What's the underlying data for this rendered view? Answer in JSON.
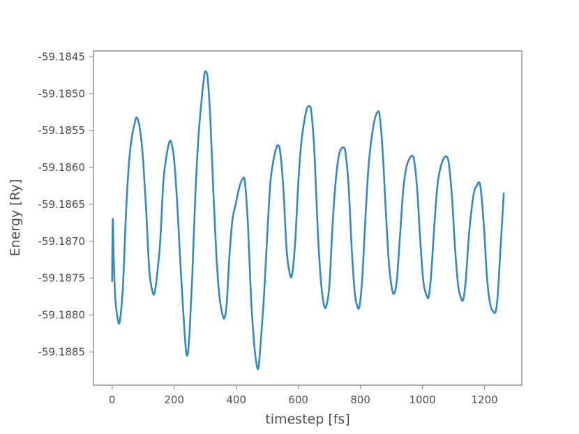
{
  "chart_data": {
    "type": "line",
    "title": "",
    "xlabel": "timestep [fs]",
    "ylabel": "Energy [Ry]",
    "xlim": [
      -60,
      1320
    ],
    "ylim": [
      -59.18895,
      -59.18442
    ],
    "grid": false,
    "colors": {
      "line": "#348abd",
      "frame": "#999999",
      "tick": "#4d4d4d"
    },
    "x_ticks": [
      0,
      200,
      400,
      600,
      800,
      1000,
      1200
    ],
    "x_tick_labels": [
      "0",
      "200",
      "400",
      "600",
      "800",
      "1000",
      "1200"
    ],
    "y_ticks": [
      -59.1845,
      -59.185,
      -59.1855,
      -59.186,
      -59.1865,
      -59.187,
      -59.1875,
      -59.188,
      -59.1885
    ],
    "y_tick_labels": [
      "-59.1845",
      "-59.1850",
      "-59.1855",
      "-59.1860",
      "-59.1865",
      "-59.1870",
      "-59.1875",
      "-59.1880",
      "-59.1885"
    ],
    "series": [
      {
        "points": [
          [
            0,
            -59.18754
          ],
          [
            2,
            -59.1867
          ],
          [
            5,
            -59.1872
          ],
          [
            10,
            -59.18775
          ],
          [
            18,
            -59.18805
          ],
          [
            25,
            -59.18808
          ],
          [
            35,
            -59.1876
          ],
          [
            45,
            -59.1866
          ],
          [
            55,
            -59.1859
          ],
          [
            65,
            -59.18555
          ],
          [
            73,
            -59.1854
          ],
          [
            78,
            -59.18532
          ],
          [
            85,
            -59.18538
          ],
          [
            92,
            -59.18555
          ],
          [
            100,
            -59.1859
          ],
          [
            110,
            -59.1866
          ],
          [
            120,
            -59.1874
          ],
          [
            130,
            -59.18768
          ],
          [
            137,
            -59.1877
          ],
          [
            145,
            -59.18745
          ],
          [
            155,
            -59.187
          ],
          [
            165,
            -59.1862
          ],
          [
            175,
            -59.18585
          ],
          [
            185,
            -59.18565
          ],
          [
            192,
            -59.18568
          ],
          [
            200,
            -59.1859
          ],
          [
            210,
            -59.1865
          ],
          [
            220,
            -59.1873
          ],
          [
            230,
            -59.188
          ],
          [
            238,
            -59.18848
          ],
          [
            244,
            -59.18852
          ],
          [
            250,
            -59.1882
          ],
          [
            258,
            -59.1875
          ],
          [
            268,
            -59.1864
          ],
          [
            278,
            -59.1856
          ],
          [
            288,
            -59.1851
          ],
          [
            297,
            -59.18475
          ],
          [
            302,
            -59.1847
          ],
          [
            308,
            -59.1848
          ],
          [
            316,
            -59.1853
          ],
          [
            326,
            -59.1863
          ],
          [
            336,
            -59.1872
          ],
          [
            346,
            -59.18775
          ],
          [
            356,
            -59.188
          ],
          [
            363,
            -59.18803
          ],
          [
            370,
            -59.1878
          ],
          [
            378,
            -59.1872
          ],
          [
            388,
            -59.1867
          ],
          [
            398,
            -59.1865
          ],
          [
            408,
            -59.1863
          ],
          [
            415,
            -59.1862
          ],
          [
            422,
            -59.18615
          ],
          [
            428,
            -59.1862
          ],
          [
            438,
            -59.1868
          ],
          [
            448,
            -59.1878
          ],
          [
            458,
            -59.1884
          ],
          [
            466,
            -59.18868
          ],
          [
            472,
            -59.1887
          ],
          [
            480,
            -59.1883
          ],
          [
            490,
            -59.1877
          ],
          [
            500,
            -59.1869
          ],
          [
            510,
            -59.1862
          ],
          [
            520,
            -59.1859
          ],
          [
            528,
            -59.18575
          ],
          [
            535,
            -59.1857
          ],
          [
            542,
            -59.1858
          ],
          [
            552,
            -59.1863
          ],
          [
            562,
            -59.1871
          ],
          [
            572,
            -59.18743
          ],
          [
            580,
            -59.18745
          ],
          [
            590,
            -59.187
          ],
          [
            600,
            -59.1862
          ],
          [
            610,
            -59.18565
          ],
          [
            620,
            -59.18535
          ],
          [
            628,
            -59.1852
          ],
          [
            635,
            -59.18517
          ],
          [
            642,
            -59.18525
          ],
          [
            652,
            -59.1858
          ],
          [
            662,
            -59.1868
          ],
          [
            672,
            -59.1875
          ],
          [
            682,
            -59.18785
          ],
          [
            690,
            -59.18788
          ],
          [
            700,
            -59.1876
          ],
          [
            710,
            -59.1868
          ],
          [
            720,
            -59.1862
          ],
          [
            730,
            -59.18585
          ],
          [
            738,
            -59.18575
          ],
          [
            745,
            -59.18573
          ],
          [
            752,
            -59.1858
          ],
          [
            762,
            -59.18625
          ],
          [
            772,
            -59.1871
          ],
          [
            782,
            -59.1877
          ],
          [
            790,
            -59.18788
          ],
          [
            797,
            -59.18788
          ],
          [
            806,
            -59.1875
          ],
          [
            816,
            -59.1867
          ],
          [
            826,
            -59.186
          ],
          [
            836,
            -59.1856
          ],
          [
            846,
            -59.18535
          ],
          [
            855,
            -59.18525
          ],
          [
            862,
            -59.1853
          ],
          [
            872,
            -59.1858
          ],
          [
            882,
            -59.1866
          ],
          [
            892,
            -59.1873
          ],
          [
            902,
            -59.18765
          ],
          [
            910,
            -59.1877
          ],
          [
            918,
            -59.1875
          ],
          [
            928,
            -59.1869
          ],
          [
            938,
            -59.1863
          ],
          [
            948,
            -59.186
          ],
          [
            958,
            -59.18588
          ],
          [
            966,
            -59.18584
          ],
          [
            973,
            -59.1859
          ],
          [
            983,
            -59.1863
          ],
          [
            993,
            -59.187
          ],
          [
            1003,
            -59.18755
          ],
          [
            1013,
            -59.18773
          ],
          [
            1020,
            -59.18775
          ],
          [
            1028,
            -59.18745
          ],
          [
            1038,
            -59.1868
          ],
          [
            1048,
            -59.18625
          ],
          [
            1058,
            -59.186
          ],
          [
            1068,
            -59.18588
          ],
          [
            1077,
            -59.18585
          ],
          [
            1085,
            -59.18595
          ],
          [
            1095,
            -59.1864
          ],
          [
            1105,
            -59.1871
          ],
          [
            1115,
            -59.1876
          ],
          [
            1125,
            -59.18778
          ],
          [
            1132,
            -59.18778
          ],
          [
            1140,
            -59.1875
          ],
          [
            1150,
            -59.1869
          ],
          [
            1160,
            -59.1865
          ],
          [
            1168,
            -59.1863
          ],
          [
            1175,
            -59.18625
          ],
          [
            1182,
            -59.1862
          ],
          [
            1188,
            -59.1863
          ],
          [
            1198,
            -59.1868
          ],
          [
            1208,
            -59.1875
          ],
          [
            1218,
            -59.18785
          ],
          [
            1228,
            -59.18795
          ],
          [
            1236,
            -59.18795
          ],
          [
            1243,
            -59.1877
          ],
          [
            1250,
            -59.1872
          ],
          [
            1257,
            -59.1867
          ],
          [
            1262,
            -59.18635
          ]
        ]
      }
    ]
  }
}
